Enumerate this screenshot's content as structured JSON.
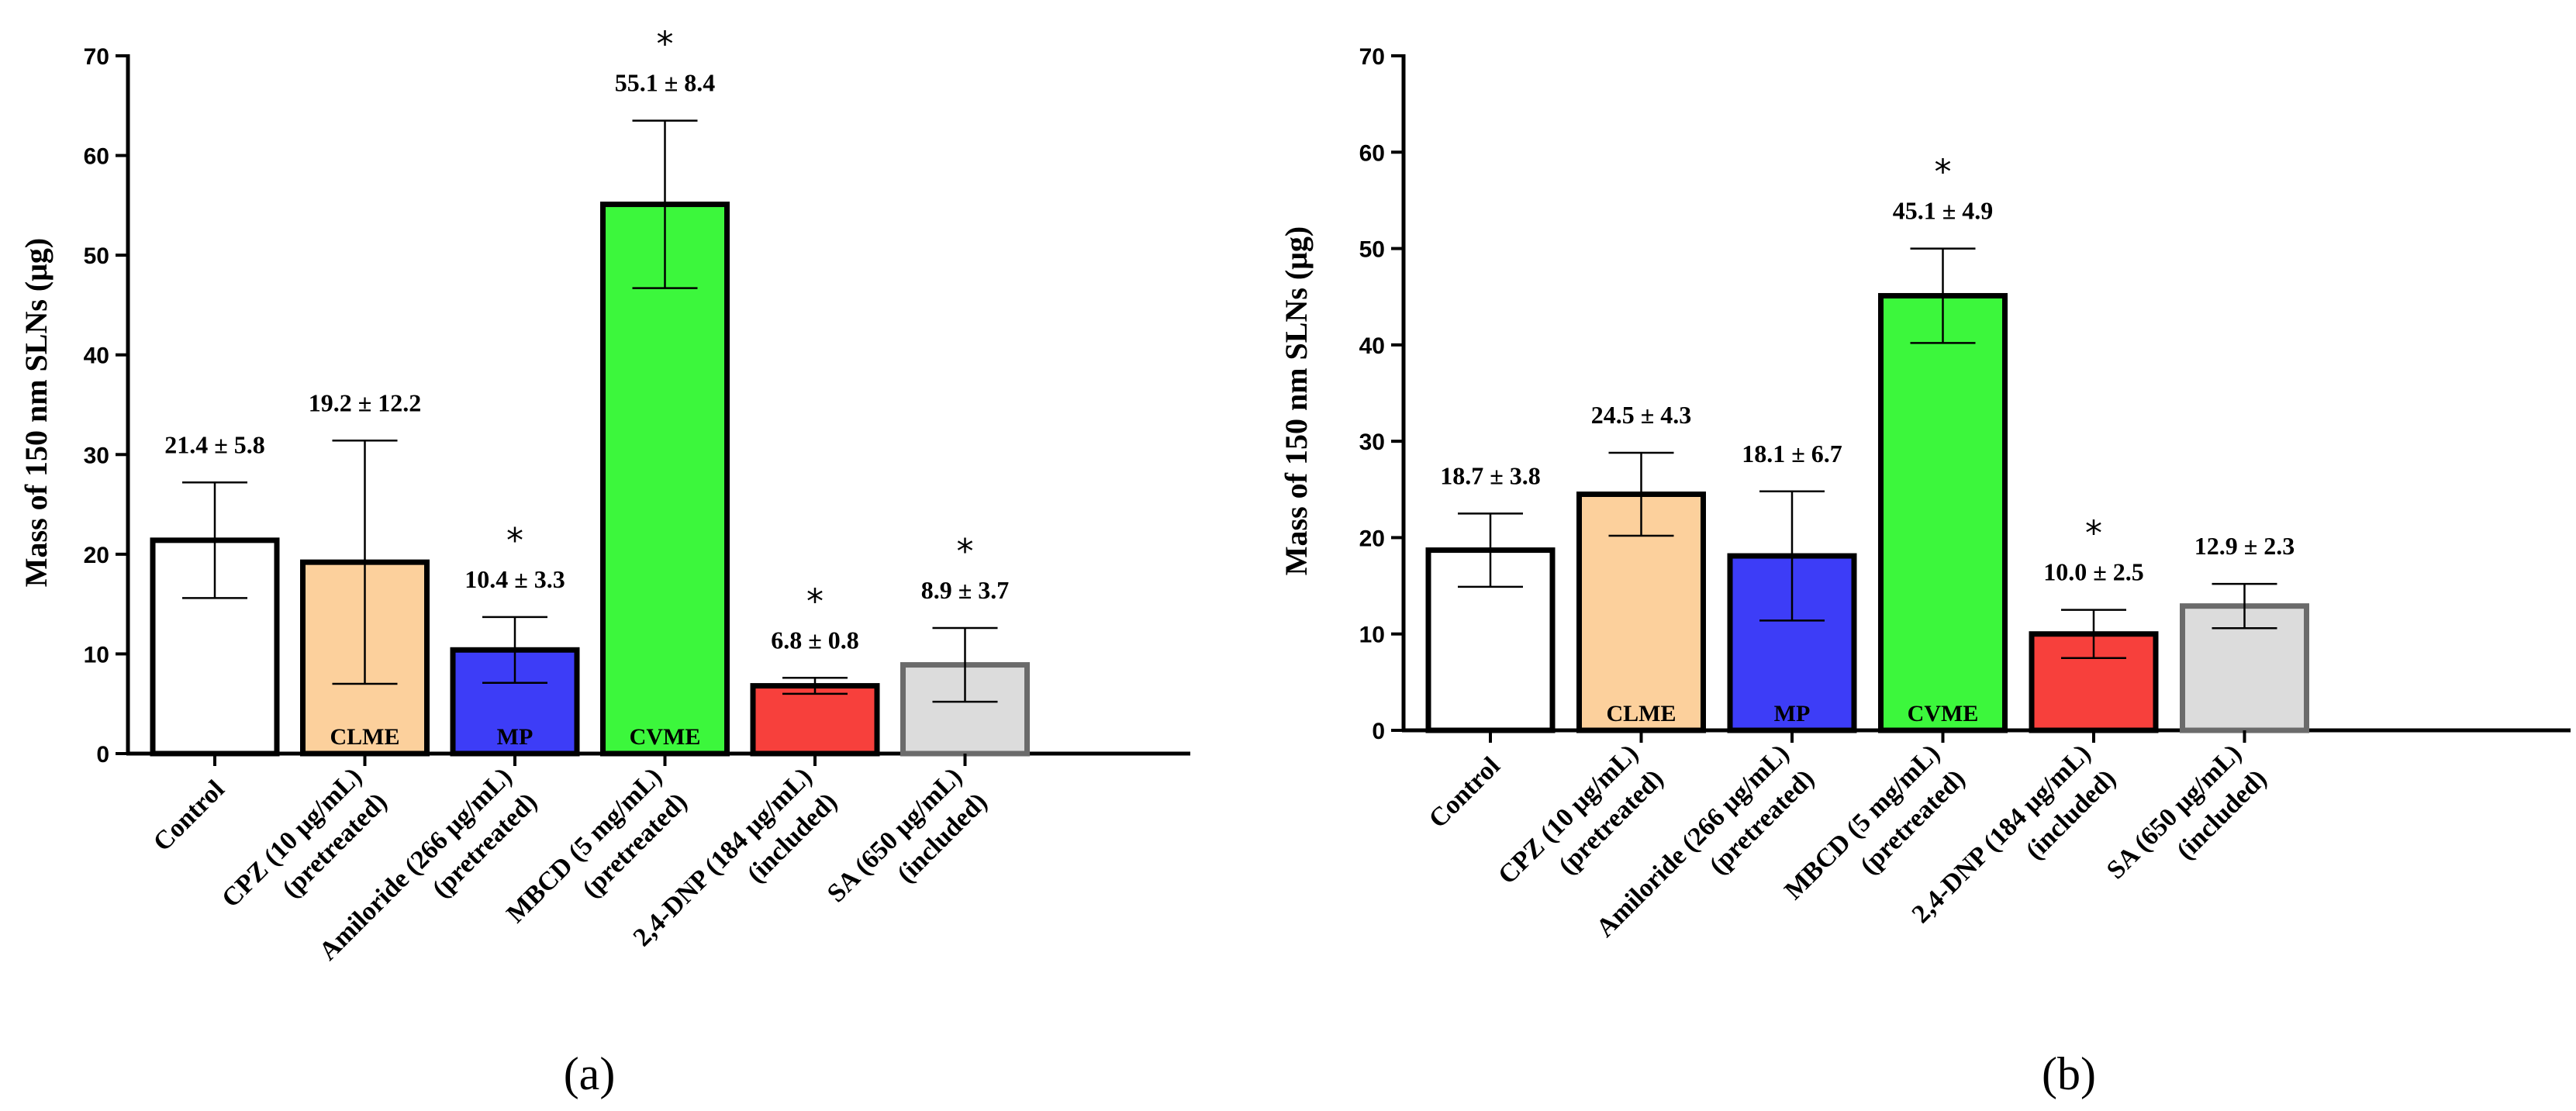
{
  "chart_data": [
    {
      "type": "bar",
      "panel_label": "(a)",
      "ylabel": "Mass of 150 nm SLNs (μg)",
      "ylim": [
        0,
        70
      ],
      "yticks": [
        0,
        10,
        20,
        30,
        40,
        50,
        60,
        70
      ],
      "grid": false,
      "categories": [
        [
          "Control"
        ],
        [
          "CPZ (10 μg/mL)",
          "(pretreated)"
        ],
        [
          "Amiloride (266 μg/mL)",
          "(pretreated)"
        ],
        [
          "MBCD (5 mg/mL)",
          "(pretreated)"
        ],
        [
          "2,4-DNP (184 μg/mL)",
          "(included)"
        ],
        [
          "SA (650 μg/mL)",
          "(included)"
        ]
      ],
      "values": [
        21.4,
        19.2,
        10.4,
        55.1,
        6.8,
        8.9
      ],
      "errors": [
        5.8,
        12.2,
        3.3,
        8.4,
        0.8,
        3.7
      ],
      "data_labels": [
        "21.4 ± 5.8",
        "19.2 ± 12.2",
        "10.4 ± 3.3",
        "55.1 ± 8.4",
        "6.8 ± 0.8",
        "8.9 ± 3.7"
      ],
      "significance": [
        "",
        "",
        "*",
        "*",
        "*",
        "*"
      ],
      "bar_inner_labels": [
        "",
        "CLME",
        "MP",
        "CVME",
        "",
        ""
      ],
      "bar_colors": [
        "#ffffff",
        "#fcd09c",
        "#3d3df7",
        "#3cf73c",
        "#f7403c",
        "#dcdcdc"
      ],
      "edge_colors": [
        "#000000",
        "#000000",
        "#000000",
        "#000000",
        "#000000",
        "#6b6b6b"
      ]
    },
    {
      "type": "bar",
      "panel_label": "(b)",
      "ylabel": "Mass of 150 nm SLNs (μg)",
      "ylim": [
        0,
        70
      ],
      "yticks": [
        0,
        10,
        20,
        30,
        40,
        50,
        60,
        70
      ],
      "grid": false,
      "categories": [
        [
          "Control"
        ],
        [
          "CPZ (10 μg/mL)",
          "(pretreated)"
        ],
        [
          "Amiloride (266 μg/mL)",
          "(pretreated)"
        ],
        [
          "MBCD (5 mg/mL)",
          "(pretreated)"
        ],
        [
          "2,4-DNP (184 μg/mL)",
          "(included)"
        ],
        [
          "SA (650 μg/mL)",
          "(included)"
        ]
      ],
      "values": [
        18.7,
        24.5,
        18.1,
        45.1,
        10.0,
        12.9
      ],
      "errors": [
        3.8,
        4.3,
        6.7,
        4.9,
        2.5,
        2.3
      ],
      "data_labels": [
        "18.7 ± 3.8",
        "24.5 ± 4.3",
        "18.1 ± 6.7",
        "45.1 ± 4.9",
        "10.0 ± 2.5",
        "12.9 ± 2.3"
      ],
      "significance": [
        "",
        "",
        "",
        "*",
        "*",
        ""
      ],
      "bar_inner_labels": [
        "",
        "CLME",
        "MP",
        "CVME",
        "",
        ""
      ],
      "bar_colors": [
        "#ffffff",
        "#fcd09c",
        "#3d3df7",
        "#3cf73c",
        "#f7403c",
        "#dcdcdc"
      ],
      "edge_colors": [
        "#000000",
        "#000000",
        "#000000",
        "#000000",
        "#000000",
        "#6b6b6b"
      ]
    }
  ]
}
